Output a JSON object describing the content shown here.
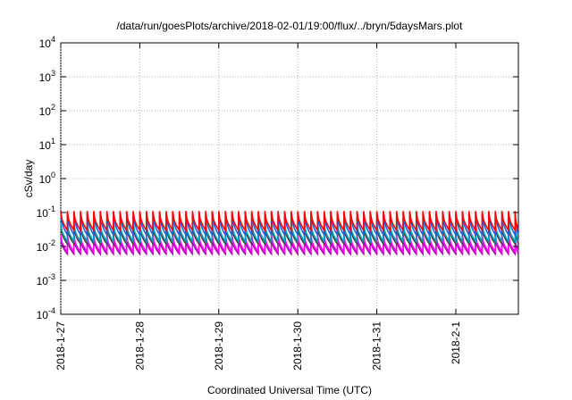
{
  "chart_data": {
    "type": "line",
    "title": "/data/run/goesPlots/archive/2018-02-01/19:00/flux/../bryn/5daysMars.plot",
    "xlabel": "Coordinated Universal Time (UTC)",
    "ylabel": "cSv/day",
    "yscale": "log",
    "ylim": [
      0.0001,
      10000
    ],
    "y_ticks": [
      {
        "value": 0.0001,
        "label": "10",
        "exp": "-4"
      },
      {
        "value": 0.001,
        "label": "10",
        "exp": "-3"
      },
      {
        "value": 0.01,
        "label": "10",
        "exp": "-2"
      },
      {
        "value": 0.1,
        "label": "10",
        "exp": "-1"
      },
      {
        "value": 1,
        "label": "10",
        "exp": "0"
      },
      {
        "value": 10,
        "label": "10",
        "exp": "1"
      },
      {
        "value": 100,
        "label": "10",
        "exp": "2"
      },
      {
        "value": 1000,
        "label": "10",
        "exp": "3"
      },
      {
        "value": 10000,
        "label": "10",
        "exp": "4"
      }
    ],
    "xlim": [
      "2018-01-27T00:00",
      "2018-02-01T19:00"
    ],
    "x_ticks": [
      {
        "value": "2018-01-27",
        "label": "2018-1-27"
      },
      {
        "value": "2018-01-28",
        "label": "2018-1-28"
      },
      {
        "value": "2018-01-29",
        "label": "2018-1-29"
      },
      {
        "value": "2018-01-30",
        "label": "2018-1-30"
      },
      {
        "value": "2018-01-31",
        "label": "2018-1-31"
      },
      {
        "value": "2018-02-01",
        "label": "2018-2-1"
      }
    ],
    "grid": true,
    "pattern": {
      "description_free": true,
      "period_hours": 2,
      "series": [
        {
          "color": "#ff0000",
          "peak": 0.11,
          "trough": 0.03
        },
        {
          "color": "#2060e0",
          "peak": 0.095,
          "trough": 0.022
        },
        {
          "color": "#00a0c0",
          "peak": 0.05,
          "trough": 0.014
        },
        {
          "color": "#404040",
          "peak": 0.04,
          "trough": 0.012
        },
        {
          "color": "#ff00ff",
          "peak": 0.022,
          "trough": 0.007
        },
        {
          "color": "#b000b0",
          "peak": 0.018,
          "trough": 0.006
        }
      ]
    }
  }
}
